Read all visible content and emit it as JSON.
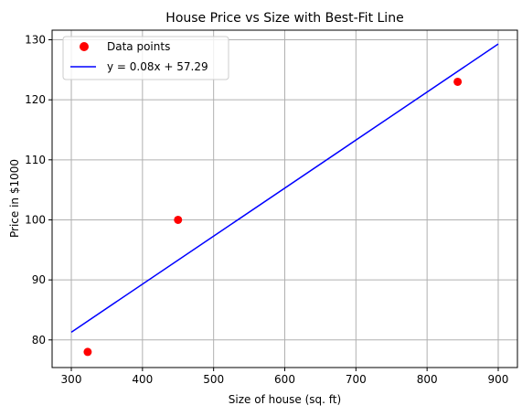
{
  "chart_data": {
    "type": "scatter",
    "title": "House Price vs Size with Best-Fit Line",
    "xlabel": "Size of house (sq. ft)",
    "ylabel": "Price in $1000",
    "xlim": [
      273,
      927
    ],
    "ylim": [
      75.4,
      131.6
    ],
    "xticks": [
      300,
      400,
      500,
      600,
      700,
      800,
      900
    ],
    "yticks": [
      80,
      90,
      100,
      110,
      120,
      130
    ],
    "grid": true,
    "legend_position": "top-left",
    "series": [
      {
        "name": "Data points",
        "kind": "scatter",
        "color": "#ff0000",
        "x": [
          323,
          450,
          843
        ],
        "y": [
          78,
          100,
          123
        ]
      },
      {
        "name": "y = 0.08x + 57.29",
        "kind": "line",
        "color": "#0000ff",
        "slope": 0.08,
        "intercept": 57.29,
        "x": [
          300,
          900
        ],
        "y": [
          81.29,
          129.29
        ]
      }
    ]
  }
}
